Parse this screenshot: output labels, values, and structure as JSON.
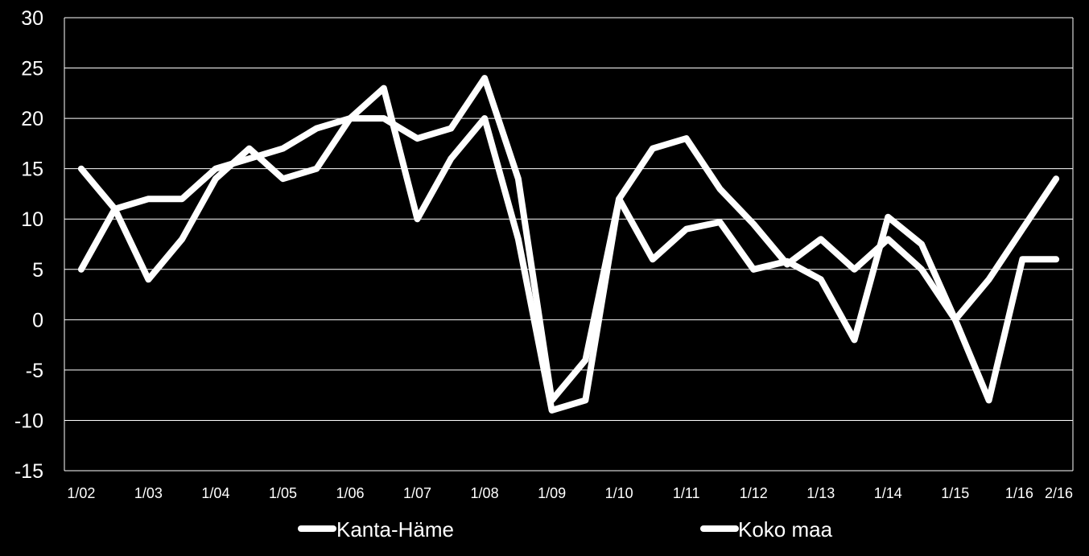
{
  "chart_data": {
    "type": "line",
    "title": "",
    "xlabel": "",
    "ylabel": "",
    "ylim": [
      -15,
      30
    ],
    "yticks": [
      "30",
      "25",
      "20",
      "15",
      "10",
      "5",
      "0",
      "-5",
      "-10",
      "-15"
    ],
    "grid": true,
    "legend_position": "bottom",
    "x_tick_labels": [
      "1/02",
      "1/03",
      "1/04",
      "1/05",
      "1/06",
      "1/07",
      "1/08",
      "1/09",
      "1/10",
      "1/11",
      "1/12",
      "1/13",
      "1/14",
      "1/15",
      "1/16",
      "2/16"
    ],
    "x": [
      "1/02",
      "2/02",
      "1/03",
      "2/03",
      "1/04",
      "2/04",
      "1/05",
      "2/05",
      "1/06",
      "2/06",
      "1/07",
      "2/07",
      "1/08",
      "2/08",
      "1/09",
      "2/09",
      "1/10",
      "2/10",
      "1/11",
      "2/11",
      "1/12",
      "2/12",
      "1/13",
      "2/13",
      "1/14",
      "2/14",
      "1/15",
      "2/15",
      "1/16",
      "2/16"
    ],
    "series": [
      {
        "name": "Kanta-Häme",
        "color": "#ffffff",
        "values": [
          15,
          11,
          4,
          8,
          14,
          17,
          14,
          15,
          20,
          23,
          10,
          16,
          20,
          8,
          -9,
          -8,
          12,
          6,
          9,
          9.7,
          5,
          5.8,
          4,
          -2,
          10.2,
          7.5,
          0,
          -8,
          6,
          6
        ]
      },
      {
        "name": "Koko maa",
        "color": "#ffffff",
        "values": [
          5,
          11,
          12,
          12,
          15,
          16,
          17,
          19,
          20,
          20,
          18,
          19,
          24,
          14,
          -8,
          -4,
          12,
          17,
          18,
          13,
          9.5,
          5.5,
          8,
          5,
          8,
          5,
          0,
          4,
          9,
          14
        ]
      }
    ]
  }
}
